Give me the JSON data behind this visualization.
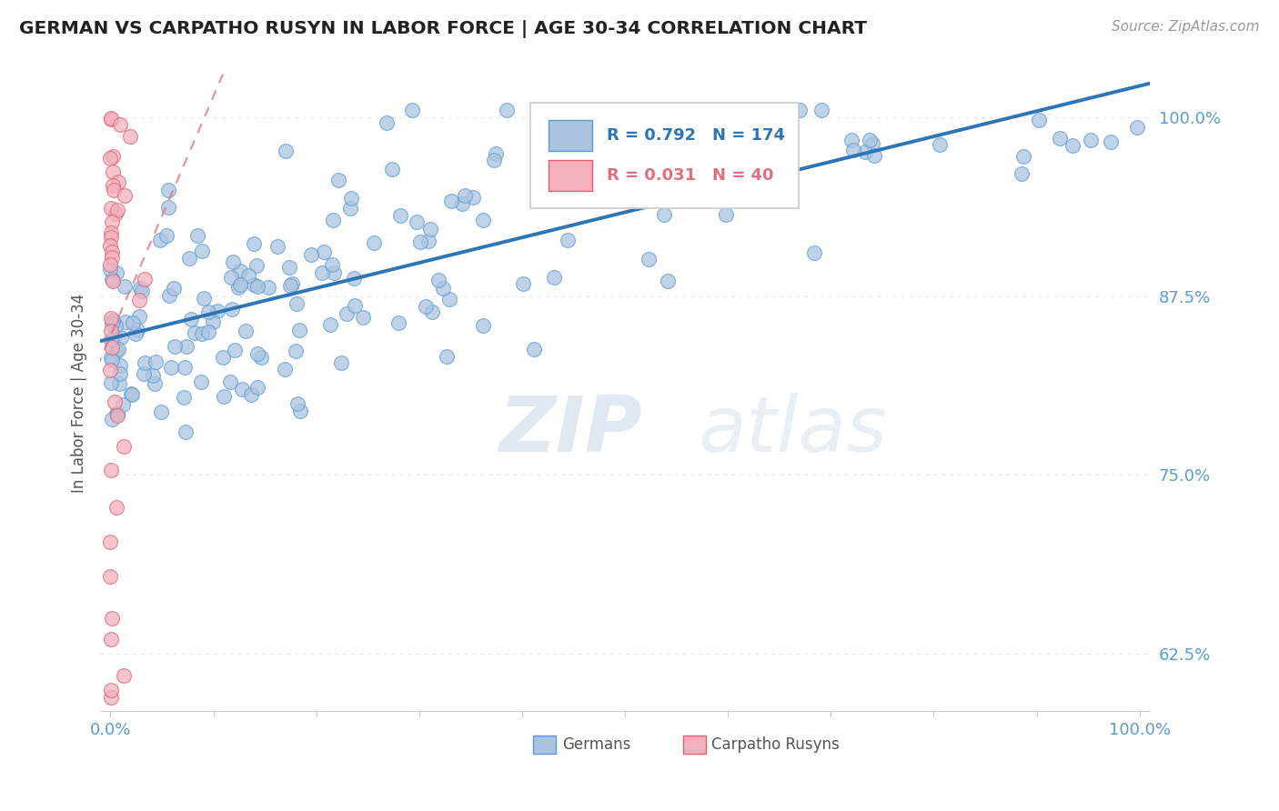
{
  "title": "GERMAN VS CARPATHO RUSYN IN LABOR FORCE | AGE 30-34 CORRELATION CHART",
  "source": "Source: ZipAtlas.com",
  "ylabel": "In Labor Force | Age 30-34",
  "ytick_labels": [
    "62.5%",
    "75.0%",
    "87.5%",
    "100.0%"
  ],
  "ytick_values": [
    0.625,
    0.75,
    0.875,
    1.0
  ],
  "xlim": [
    0.0,
    1.0
  ],
  "ylim": [
    0.585,
    1.03
  ],
  "german_color": "#aac4e0",
  "german_edge_color": "#5b9bd5",
  "rusyn_color": "#f4b0bc",
  "rusyn_edge_color": "#e06070",
  "german_line_color": "#2e75b6",
  "rusyn_line_color": "#e07080",
  "background_color": "#ffffff",
  "watermark_color": "#d8e6f0",
  "title_color": "#222222",
  "axis_label_color": "#5b9bd5",
  "legend_text_color_german": "#2e75b6",
  "legend_text_color_rusyn": "#e07080",
  "grid_color": "#e8e8e8",
  "spine_color": "#cccccc"
}
